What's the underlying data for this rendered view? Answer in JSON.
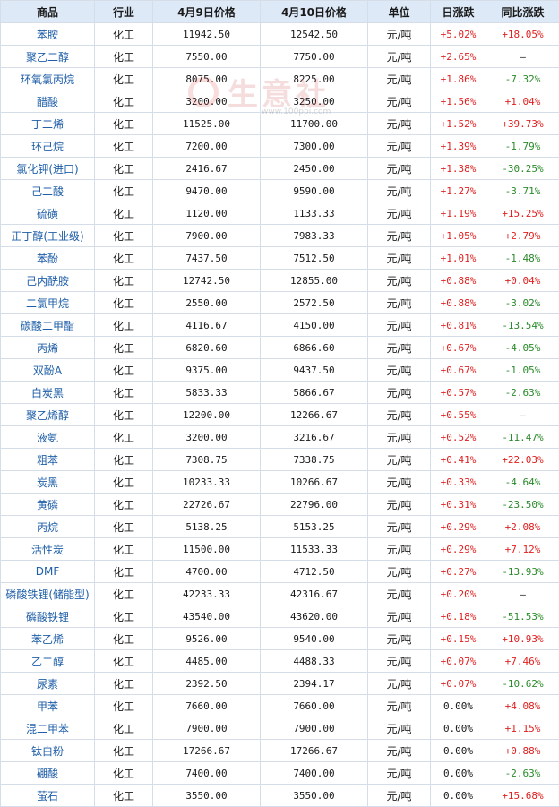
{
  "headers": [
    "商品",
    "行业",
    "4月9日价格",
    "4月10日价格",
    "单位",
    "日涨跌",
    "同比涨跌"
  ],
  "colors": {
    "up": "#e02020",
    "down": "#2a8a2a",
    "header_bg": "#dde9f7",
    "border": "#d4dde8",
    "name": "#1f5fa8"
  },
  "watermark": {
    "text": "生意社",
    "url": "www.100ppi.com"
  },
  "rows": [
    {
      "name": "苯胺",
      "industry": "化工",
      "p1": "11942.50",
      "p2": "12542.50",
      "unit": "元/吨",
      "daily": "+5.02%",
      "yoy": "+18.05%"
    },
    {
      "name": "聚乙二醇",
      "industry": "化工",
      "p1": "7550.00",
      "p2": "7750.00",
      "unit": "元/吨",
      "daily": "+2.65%",
      "yoy": "—"
    },
    {
      "name": "环氧氯丙烷",
      "industry": "化工",
      "p1": "8075.00",
      "p2": "8225.00",
      "unit": "元/吨",
      "daily": "+1.86%",
      "yoy": "-7.32%"
    },
    {
      "name": "醋酸",
      "industry": "化工",
      "p1": "3200.00",
      "p2": "3250.00",
      "unit": "元/吨",
      "daily": "+1.56%",
      "yoy": "+1.04%"
    },
    {
      "name": "丁二烯",
      "industry": "化工",
      "p1": "11525.00",
      "p2": "11700.00",
      "unit": "元/吨",
      "daily": "+1.52%",
      "yoy": "+39.73%"
    },
    {
      "name": "环己烷",
      "industry": "化工",
      "p1": "7200.00",
      "p2": "7300.00",
      "unit": "元/吨",
      "daily": "+1.39%",
      "yoy": "-1.79%"
    },
    {
      "name": "氯化钾(进口)",
      "industry": "化工",
      "p1": "2416.67",
      "p2": "2450.00",
      "unit": "元/吨",
      "daily": "+1.38%",
      "yoy": "-30.25%"
    },
    {
      "name": "己二酸",
      "industry": "化工",
      "p1": "9470.00",
      "p2": "9590.00",
      "unit": "元/吨",
      "daily": "+1.27%",
      "yoy": "-3.71%"
    },
    {
      "name": "硫磺",
      "industry": "化工",
      "p1": "1120.00",
      "p2": "1133.33",
      "unit": "元/吨",
      "daily": "+1.19%",
      "yoy": "+15.25%"
    },
    {
      "name": "正丁醇(工业级)",
      "industry": "化工",
      "p1": "7900.00",
      "p2": "7983.33",
      "unit": "元/吨",
      "daily": "+1.05%",
      "yoy": "+2.79%"
    },
    {
      "name": "苯酚",
      "industry": "化工",
      "p1": "7437.50",
      "p2": "7512.50",
      "unit": "元/吨",
      "daily": "+1.01%",
      "yoy": "-1.48%"
    },
    {
      "name": "己内酰胺",
      "industry": "化工",
      "p1": "12742.50",
      "p2": "12855.00",
      "unit": "元/吨",
      "daily": "+0.88%",
      "yoy": "+0.04%"
    },
    {
      "name": "二氯甲烷",
      "industry": "化工",
      "p1": "2550.00",
      "p2": "2572.50",
      "unit": "元/吨",
      "daily": "+0.88%",
      "yoy": "-3.02%"
    },
    {
      "name": "碳酸二甲酯",
      "industry": "化工",
      "p1": "4116.67",
      "p2": "4150.00",
      "unit": "元/吨",
      "daily": "+0.81%",
      "yoy": "-13.54%"
    },
    {
      "name": "丙烯",
      "industry": "化工",
      "p1": "6820.60",
      "p2": "6866.60",
      "unit": "元/吨",
      "daily": "+0.67%",
      "yoy": "-4.05%"
    },
    {
      "name": "双酚A",
      "industry": "化工",
      "p1": "9375.00",
      "p2": "9437.50",
      "unit": "元/吨",
      "daily": "+0.67%",
      "yoy": "-1.05%"
    },
    {
      "name": "白炭黑",
      "industry": "化工",
      "p1": "5833.33",
      "p2": "5866.67",
      "unit": "元/吨",
      "daily": "+0.57%",
      "yoy": "-2.63%"
    },
    {
      "name": "聚乙烯醇",
      "industry": "化工",
      "p1": "12200.00",
      "p2": "12266.67",
      "unit": "元/吨",
      "daily": "+0.55%",
      "yoy": "—"
    },
    {
      "name": "液氨",
      "industry": "化工",
      "p1": "3200.00",
      "p2": "3216.67",
      "unit": "元/吨",
      "daily": "+0.52%",
      "yoy": "-11.47%"
    },
    {
      "name": "粗苯",
      "industry": "化工",
      "p1": "7308.75",
      "p2": "7338.75",
      "unit": "元/吨",
      "daily": "+0.41%",
      "yoy": "+22.03%"
    },
    {
      "name": "炭黑",
      "industry": "化工",
      "p1": "10233.33",
      "p2": "10266.67",
      "unit": "元/吨",
      "daily": "+0.33%",
      "yoy": "-4.64%"
    },
    {
      "name": "黄磷",
      "industry": "化工",
      "p1": "22726.67",
      "p2": "22796.00",
      "unit": "元/吨",
      "daily": "+0.31%",
      "yoy": "-23.50%"
    },
    {
      "name": "丙烷",
      "industry": "化工",
      "p1": "5138.25",
      "p2": "5153.25",
      "unit": "元/吨",
      "daily": "+0.29%",
      "yoy": "+2.08%"
    },
    {
      "name": "活性炭",
      "industry": "化工",
      "p1": "11500.00",
      "p2": "11533.33",
      "unit": "元/吨",
      "daily": "+0.29%",
      "yoy": "+7.12%"
    },
    {
      "name": "DMF",
      "industry": "化工",
      "p1": "4700.00",
      "p2": "4712.50",
      "unit": "元/吨",
      "daily": "+0.27%",
      "yoy": "-13.93%"
    },
    {
      "name": "磷酸铁锂(储能型)",
      "industry": "化工",
      "p1": "42233.33",
      "p2": "42316.67",
      "unit": "元/吨",
      "daily": "+0.20%",
      "yoy": "—"
    },
    {
      "name": "磷酸铁锂",
      "industry": "化工",
      "p1": "43540.00",
      "p2": "43620.00",
      "unit": "元/吨",
      "daily": "+0.18%",
      "yoy": "-51.53%"
    },
    {
      "name": "苯乙烯",
      "industry": "化工",
      "p1": "9526.00",
      "p2": "9540.00",
      "unit": "元/吨",
      "daily": "+0.15%",
      "yoy": "+10.93%"
    },
    {
      "name": "乙二醇",
      "industry": "化工",
      "p1": "4485.00",
      "p2": "4488.33",
      "unit": "元/吨",
      "daily": "+0.07%",
      "yoy": "+7.46%"
    },
    {
      "name": "尿素",
      "industry": "化工",
      "p1": "2392.50",
      "p2": "2394.17",
      "unit": "元/吨",
      "daily": "+0.07%",
      "yoy": "-10.62%"
    },
    {
      "name": "甲苯",
      "industry": "化工",
      "p1": "7660.00",
      "p2": "7660.00",
      "unit": "元/吨",
      "daily": "0.00%",
      "yoy": "+4.08%"
    },
    {
      "name": "混二甲苯",
      "industry": "化工",
      "p1": "7900.00",
      "p2": "7900.00",
      "unit": "元/吨",
      "daily": "0.00%",
      "yoy": "+1.15%"
    },
    {
      "name": "钛白粉",
      "industry": "化工",
      "p1": "17266.67",
      "p2": "17266.67",
      "unit": "元/吨",
      "daily": "0.00%",
      "yoy": "+0.88%"
    },
    {
      "name": "硼酸",
      "industry": "化工",
      "p1": "7400.00",
      "p2": "7400.00",
      "unit": "元/吨",
      "daily": "0.00%",
      "yoy": "-2.63%"
    },
    {
      "name": "萤石",
      "industry": "化工",
      "p1": "3550.00",
      "p2": "3550.00",
      "unit": "元/吨",
      "daily": "0.00%",
      "yoy": "+15.68%"
    }
  ]
}
